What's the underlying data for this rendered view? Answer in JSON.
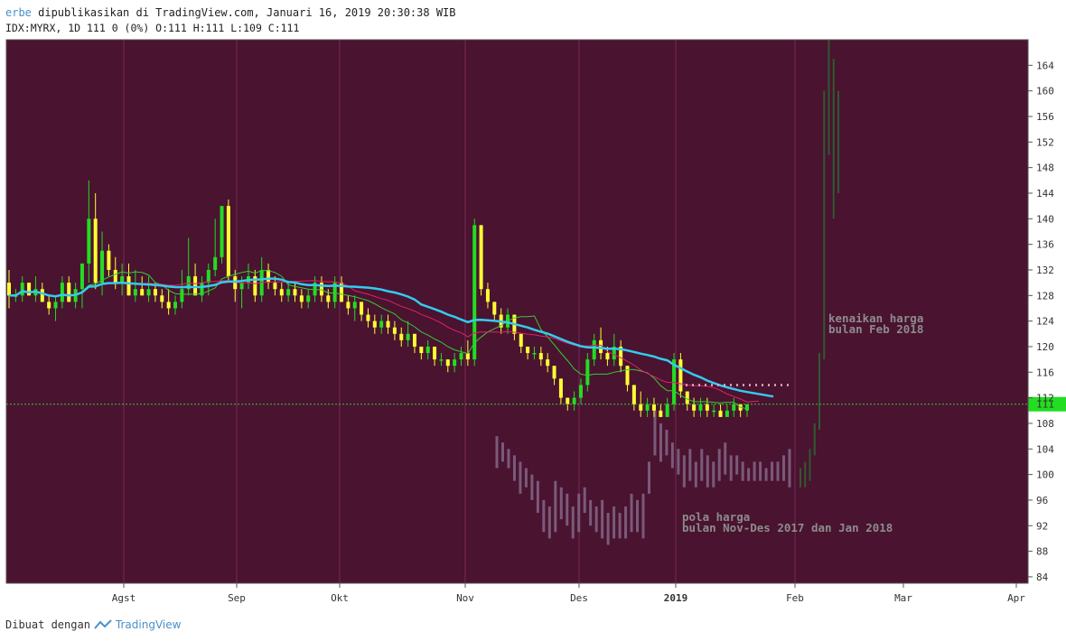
{
  "header": {
    "author": "erbe",
    "published_text": " dipublikasikan di TradingView.com, Januari 16, 2019 20:30:38 WIB",
    "ticker_line": "IDX:MYRX, 1D 111 0 (0%) O:111 H:111 L:109 C:111"
  },
  "footer": {
    "made_with": "Dibuat dengan",
    "brand": "TradingView"
  },
  "colors": {
    "background": "#4a1330",
    "grid": "#7a2a55",
    "candle_up": "#22dd22",
    "candle_down": "#ffff33",
    "ma_fast": "#33cc33",
    "ma_mid": "#dd2266",
    "ma_slow": "#33ccee",
    "ghost": "#7a5a7a",
    "future": "#2f5a2f",
    "price_line": "#33cc33",
    "price_badge": "#22dd22"
  },
  "chart_data": {
    "type": "candlestick",
    "x_ticks": [
      "Agst",
      "Sep",
      "Okt",
      "Nov",
      "Des",
      "2019",
      "Feb",
      "Mar",
      "Apr"
    ],
    "y_ticks": [
      84,
      88,
      92,
      96,
      100,
      104,
      108,
      112,
      116,
      120,
      124,
      128,
      132,
      136,
      140,
      144,
      148,
      152,
      156,
      160,
      164
    ],
    "ylim": [
      83,
      168
    ],
    "last_price": 111,
    "resistance_level": 114.0,
    "annotations": [
      {
        "lines": [
          "kenaikan harga",
          "bulan Feb 2018"
        ]
      },
      {
        "lines": [
          "pola harga",
          "bulan Nov-Des 2017 dan Jan 2018"
        ]
      }
    ],
    "candles": [
      [
        130,
        132,
        126,
        128
      ],
      [
        128,
        129,
        127,
        128
      ],
      [
        128,
        131,
        127,
        130
      ],
      [
        130,
        130,
        128,
        128
      ],
      [
        128,
        131,
        127,
        129
      ],
      [
        129,
        130,
        127,
        127
      ],
      [
        127,
        128,
        125,
        126
      ],
      [
        126,
        128,
        124,
        127
      ],
      [
        127,
        131,
        126,
        130
      ],
      [
        130,
        131,
        127,
        127
      ],
      [
        127,
        130,
        126,
        129
      ],
      [
        129,
        133,
        126,
        133
      ],
      [
        133,
        146,
        130,
        140
      ],
      [
        140,
        144,
        129,
        130
      ],
      [
        130,
        138,
        128,
        135
      ],
      [
        135,
        136,
        131,
        132
      ],
      [
        132,
        134,
        129,
        130
      ],
      [
        130,
        133,
        128,
        131
      ],
      [
        131,
        133,
        128,
        128
      ],
      [
        128,
        132,
        127,
        129
      ],
      [
        129,
        131,
        128,
        128
      ],
      [
        128,
        131,
        127,
        129
      ],
      [
        129,
        130,
        127,
        128
      ],
      [
        128,
        129,
        126,
        127
      ],
      [
        127,
        129,
        125,
        126
      ],
      [
        126,
        128,
        125,
        127
      ],
      [
        127,
        132,
        126,
        129
      ],
      [
        129,
        137,
        128,
        131
      ],
      [
        131,
        133,
        128,
        128
      ],
      [
        128,
        131,
        127,
        130
      ],
      [
        130,
        133,
        128,
        132
      ],
      [
        132,
        140,
        131,
        134
      ],
      [
        134,
        142,
        133,
        142
      ],
      [
        142,
        143,
        130,
        131
      ],
      [
        131,
        132,
        127,
        129
      ],
      [
        129,
        131,
        126,
        130
      ],
      [
        130,
        133,
        129,
        131
      ],
      [
        131,
        132,
        127,
        128
      ],
      [
        128,
        134,
        127,
        132
      ],
      [
        132,
        133,
        129,
        130
      ],
      [
        130,
        131,
        128,
        129
      ],
      [
        129,
        130,
        127,
        128
      ],
      [
        128,
        130,
        127,
        129
      ],
      [
        129,
        130,
        127,
        128
      ],
      [
        128,
        129,
        126,
        127
      ],
      [
        127,
        129,
        126,
        128
      ],
      [
        128,
        131,
        127,
        130
      ],
      [
        130,
        131,
        127,
        128
      ],
      [
        128,
        129,
        126,
        127
      ],
      [
        127,
        131,
        126,
        130
      ],
      [
        130,
        131,
        127,
        127
      ],
      [
        127,
        128,
        125,
        126
      ],
      [
        126,
        128,
        124,
        127
      ],
      [
        127,
        127,
        124,
        125
      ],
      [
        125,
        126,
        123,
        124
      ],
      [
        124,
        125,
        122,
        123
      ],
      [
        123,
        125,
        122,
        124
      ],
      [
        124,
        125,
        122,
        123
      ],
      [
        123,
        124,
        121,
        122
      ],
      [
        122,
        123,
        120,
        121
      ],
      [
        121,
        124,
        120,
        122
      ],
      [
        122,
        122,
        119,
        120
      ],
      [
        120,
        120,
        118,
        119
      ],
      [
        119,
        121,
        118,
        120
      ],
      [
        120,
        120,
        117,
        118
      ],
      [
        118,
        119,
        117,
        118
      ],
      [
        118,
        118,
        116,
        117
      ],
      [
        117,
        119,
        116,
        118
      ],
      [
        118,
        120,
        117,
        119
      ],
      [
        119,
        121,
        117,
        118
      ],
      [
        118,
        140,
        117,
        139
      ],
      [
        139,
        139,
        128,
        129
      ],
      [
        129,
        130,
        126,
        127
      ],
      [
        127,
        127,
        124,
        125
      ],
      [
        125,
        126,
        122,
        123
      ],
      [
        123,
        126,
        122,
        125
      ],
      [
        125,
        125,
        121,
        122
      ],
      [
        122,
        122,
        119,
        120
      ],
      [
        120,
        120,
        118,
        119
      ],
      [
        119,
        120,
        118,
        119
      ],
      [
        119,
        120,
        117,
        118
      ],
      [
        118,
        119,
        116,
        117
      ],
      [
        117,
        117,
        114,
        115
      ],
      [
        115,
        115,
        111,
        112
      ],
      [
        112,
        112,
        110,
        111
      ],
      [
        111,
        113,
        110,
        112
      ],
      [
        112,
        115,
        111,
        114
      ],
      [
        114,
        119,
        113,
        118
      ],
      [
        118,
        122,
        117,
        121
      ],
      [
        121,
        123,
        118,
        119
      ],
      [
        119,
        120,
        117,
        118
      ],
      [
        118,
        122,
        117,
        120
      ],
      [
        120,
        121,
        116,
        117
      ],
      [
        117,
        117,
        113,
        114
      ],
      [
        114,
        114,
        110,
        111
      ],
      [
        111,
        113,
        109,
        110
      ],
      [
        110,
        112,
        109,
        111
      ],
      [
        111,
        112,
        109,
        110
      ],
      [
        110,
        111,
        109,
        109
      ],
      [
        109,
        112,
        109,
        111
      ],
      [
        111,
        119,
        110,
        118
      ],
      [
        118,
        119,
        112,
        113
      ],
      [
        113,
        113,
        110,
        111
      ],
      [
        111,
        112,
        109,
        110
      ],
      [
        110,
        112,
        109,
        111
      ],
      [
        111,
        112,
        109,
        110
      ],
      [
        110,
        111,
        109,
        110
      ],
      [
        110,
        111,
        109,
        109
      ],
      [
        109,
        111,
        109,
        110
      ],
      [
        110,
        112,
        109,
        111
      ],
      [
        111,
        111,
        109,
        110
      ],
      [
        110,
        111,
        109,
        111
      ]
    ],
    "ghost_bars": [
      [
        101,
        106
      ],
      [
        102,
        105
      ],
      [
        101,
        104
      ],
      [
        99,
        103
      ],
      [
        97,
        102
      ],
      [
        98,
        101
      ],
      [
        96,
        100
      ],
      [
        94,
        99
      ],
      [
        91,
        96
      ],
      [
        90,
        95
      ],
      [
        91,
        99
      ],
      [
        93,
        98
      ],
      [
        92,
        97
      ],
      [
        90,
        95
      ],
      [
        91,
        97
      ],
      [
        94,
        98
      ],
      [
        92,
        96
      ],
      [
        91,
        95
      ],
      [
        90,
        96
      ],
      [
        89,
        94
      ],
      [
        90,
        95
      ],
      [
        90,
        94
      ],
      [
        90,
        95
      ],
      [
        91,
        97
      ],
      [
        91,
        96
      ],
      [
        90,
        97
      ],
      [
        97,
        102
      ],
      [
        103,
        110
      ],
      [
        102,
        108
      ],
      [
        103,
        107
      ],
      [
        101,
        105
      ],
      [
        100,
        104
      ],
      [
        98,
        103
      ],
      [
        99,
        104
      ],
      [
        98,
        102
      ],
      [
        99,
        104
      ],
      [
        98,
        103
      ],
      [
        98,
        102
      ],
      [
        99,
        104
      ],
      [
        100,
        105
      ],
      [
        99,
        103
      ],
      [
        100,
        103
      ],
      [
        99,
        102
      ],
      [
        99,
        101
      ],
      [
        99,
        102
      ],
      [
        99,
        102
      ],
      [
        99,
        101
      ],
      [
        99,
        102
      ],
      [
        99,
        102
      ],
      [
        99,
        103
      ],
      [
        98,
        104
      ]
    ],
    "future_bars": [
      [
        98,
        101
      ],
      [
        98,
        102
      ],
      [
        99,
        104
      ],
      [
        103,
        108
      ],
      [
        107,
        119
      ],
      [
        118,
        160
      ],
      [
        150,
        170
      ],
      [
        140,
        165
      ],
      [
        144,
        160
      ]
    ]
  }
}
